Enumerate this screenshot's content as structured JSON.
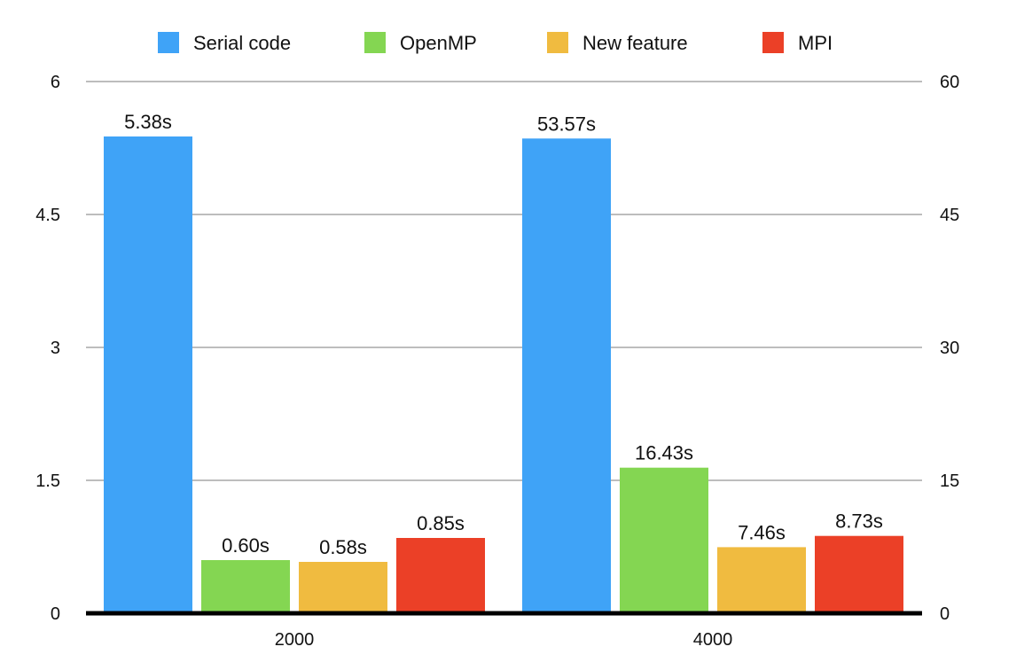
{
  "chart_data": {
    "type": "bar",
    "categories": [
      "2000",
      "4000"
    ],
    "series": [
      {
        "name": "Serial code",
        "color": "#3FA3F7",
        "left_axis_values": [
          5.38,
          5.357
        ],
        "values": [
          5.38,
          53.57
        ],
        "labels": [
          "5.38s",
          "53.57s"
        ]
      },
      {
        "name": "OpenMP",
        "color": "#84D652",
        "left_axis_values": [
          0.6,
          1.643
        ],
        "values": [
          0.6,
          16.43
        ],
        "labels": [
          "0.60s",
          "16.43s"
        ]
      },
      {
        "name": "New feature",
        "color": "#F0BB40",
        "left_axis_values": [
          0.58,
          0.746
        ],
        "values": [
          0.58,
          7.46
        ],
        "labels": [
          "0.58s",
          "7.46s"
        ]
      },
      {
        "name": "MPI",
        "color": "#EB4027",
        "left_axis_values": [
          0.85,
          0.873
        ],
        "values": [
          0.85,
          8.73
        ],
        "labels": [
          "0.85s",
          "8.73s"
        ]
      }
    ],
    "y_left": {
      "ticks": [
        "0",
        "1.5",
        "3",
        "4.5",
        "6"
      ],
      "ylim": [
        0,
        6
      ]
    },
    "y_right": {
      "ticks": [
        "0",
        "15",
        "30",
        "45",
        "60"
      ],
      "ylim": [
        0,
        60
      ]
    },
    "title": "",
    "xlabel": "",
    "ylabel": "",
    "grid": true,
    "legend_position": "top"
  }
}
